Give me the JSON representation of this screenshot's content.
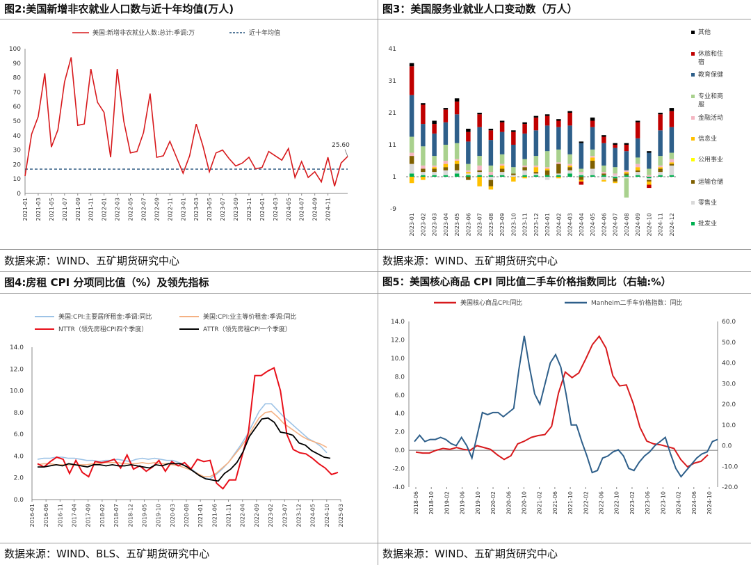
{
  "source_labels": {
    "p2": "数据来源：WIND、五矿期货研究中心",
    "p3": "数据来源：WIND、五矿期货研究中心",
    "p4": "数据来源：WIND、BLS、五矿期货研究中心",
    "p5": "数据来源：WIND、五矿期货研究中心"
  },
  "colors": {
    "red": "#d7191c",
    "blue": "#2e5f8a",
    "navy": "#1f4e79",
    "lightblue": "#9dc3e6",
    "orange": "#f4b183",
    "black": "#000000",
    "grid": "#bfbfbf"
  },
  "chart_data": [
    {
      "id": "p2",
      "type": "line",
      "title": "图2:美国新增非农就业人口数与近十年均值(万人)",
      "xlabel": "",
      "ylabel": "",
      "ylim": [
        0,
        100
      ],
      "yticks": [
        0,
        10,
        20,
        30,
        40,
        50,
        60,
        70,
        80,
        90,
        100
      ],
      "xticks": [
        "2021-01",
        "2021-03",
        "2021-05",
        "2021-07",
        "2021-09",
        "2021-11",
        "2022-01",
        "2022-03",
        "2022-05",
        "2022-07",
        "2022-09",
        "2022-11",
        "2023-01",
        "2023-03",
        "2023-05",
        "2023-07",
        "2023-09",
        "2023-11",
        "2024-01",
        "2024-03",
        "2024-05",
        "2024-07",
        "2024-09",
        "2024-11"
      ],
      "series": [
        {
          "name": "美国:新增非农就业人数:总计:季调:万",
          "color": "#d7191c",
          "values": [
            12,
            41,
            53,
            83,
            32,
            44,
            77,
            94,
            47,
            48,
            86,
            63,
            56,
            25,
            86,
            50,
            28,
            29,
            42,
            69,
            25,
            26,
            36,
            25,
            14,
            26,
            48,
            33,
            15,
            28,
            30,
            24,
            19,
            21,
            25,
            17,
            18,
            29,
            26,
            23,
            31,
            11,
            22,
            11,
            15,
            8,
            25,
            5,
            21,
            25.6
          ]
        },
        {
          "name": "近十年均值",
          "color": "#1f4e79",
          "style": "dashed",
          "values": [
            16.8
          ]
        }
      ],
      "annotations": [
        "25.60"
      ],
      "legend_position": "top"
    },
    {
      "id": "p3",
      "type": "bar",
      "title": "图3：美国服务业就业人口变动数（万人）",
      "stacked": true,
      "ylim": [
        -9,
        41
      ],
      "yticks": [
        -9,
        1,
        11,
        21,
        31,
        41
      ],
      "categories": [
        "2023-01",
        "2023-02",
        "2023-03",
        "2023-04",
        "2023-05",
        "2023-06",
        "2023-07",
        "2023-08",
        "2023-09",
        "2023-10",
        "2023-11",
        "2023-12",
        "2024-01",
        "2024-02",
        "2024-03",
        "2024-04",
        "2024-05",
        "2024-06",
        "2024-07",
        "2024-08",
        "2024-09",
        "2024-10",
        "2024-11",
        "2024-12"
      ],
      "series": [
        {
          "name": "批发业",
          "color": "#00b050",
          "values": [
            1,
            0.5,
            0.5,
            0.5,
            1,
            0.5,
            0.5,
            0.5,
            0.5,
            0,
            0.5,
            0.5,
            0.5,
            0.5,
            1,
            0.5,
            0.5,
            0.5,
            -0.5,
            0.5,
            0.5,
            -0.5,
            0.5,
            0.5
          ]
        },
        {
          "name": "零售业",
          "color": "#d9d9d9",
          "values": [
            3,
            1,
            1,
            1.5,
            1,
            0.5,
            1,
            -1,
            1,
            0.5,
            1.5,
            0.5,
            -1,
            0.5,
            1,
            0.5,
            2,
            -1,
            0.5,
            -0.5,
            1,
            -0.5,
            1,
            3
          ]
        },
        {
          "name": "运输仓储",
          "color": "#7f6000",
          "values": [
            2.5,
            1,
            1,
            1,
            2,
            -1,
            0.5,
            -2,
            1,
            0.5,
            1,
            0.5,
            1.5,
            3,
            1,
            -1,
            2.5,
            0.5,
            -1,
            0.5,
            0.5,
            -0.5,
            1,
            0.5
          ]
        },
        {
          "name": "公用事业",
          "color": "#ffff00",
          "values": [
            0,
            0,
            0,
            0,
            0,
            0,
            0,
            0,
            0,
            0,
            0,
            0,
            0,
            0,
            0,
            0,
            0,
            0,
            0,
            0,
            0,
            0,
            0,
            0
          ]
        },
        {
          "name": "信息业",
          "color": "#ffc000",
          "values": [
            -2,
            -1,
            0.5,
            1,
            1,
            0.5,
            -3,
            -1,
            1,
            -1.5,
            -0.5,
            1.5,
            0.5,
            -0.5,
            0.5,
            -0.5,
            1,
            -0.5,
            -0.5,
            0.5,
            1,
            -1,
            0.5,
            0.5
          ]
        },
        {
          "name": "金融活动",
          "color": "#f4b6c2",
          "values": [
            1,
            1,
            0.5,
            1,
            0.5,
            0.5,
            1.5,
            1,
            0.5,
            0,
            0.5,
            0.5,
            0.5,
            0.5,
            0.5,
            0.5,
            0.5,
            0.5,
            0.5,
            0.5,
            1,
            0.5,
            0.5,
            1
          ]
        },
        {
          "name": "专业和商服",
          "color": "#a9d18e",
          "values": [
            5,
            6,
            3,
            5,
            5,
            2,
            3,
            2,
            3,
            2,
            2,
            3,
            5,
            4,
            3,
            1,
            2,
            2,
            2,
            -6,
            2,
            2,
            3,
            2
          ]
        },
        {
          "name": "教育保健",
          "color": "#2e5f8a",
          "values": [
            13,
            7,
            7,
            7,
            9,
            7,
            9,
            8,
            7,
            7,
            8,
            8,
            8,
            7,
            9,
            8,
            7,
            7,
            6,
            6,
            6,
            5,
            8,
            8
          ]
        },
        {
          "name": "休旅和住宿",
          "color": "#c00000",
          "values": [
            9,
            6,
            3,
            4,
            4,
            3,
            4,
            3,
            3,
            4,
            3,
            4,
            3,
            2,
            4,
            -1,
            2,
            2,
            1,
            2,
            5,
            -1,
            5,
            5
          ]
        },
        {
          "name": "其他",
          "color": "#000000",
          "values": [
            1,
            0.5,
            1,
            0.5,
            1,
            1,
            0.5,
            0.5,
            0.5,
            0.5,
            0.5,
            0.5,
            0.5,
            0.5,
            0.5,
            0.5,
            1,
            0.5,
            0.5,
            0.5,
            0.5,
            0.5,
            0.5,
            1
          ]
        }
      ],
      "legend_position": "right"
    },
    {
      "id": "p4",
      "type": "line",
      "title": "图4:房租 CPI 分项同比值（%）及领先指标",
      "ylim": [
        0,
        14
      ],
      "yticks": [
        0.0,
        2.0,
        4.0,
        6.0,
        8.0,
        10.0,
        12.0,
        14.0
      ],
      "xticks": [
        "2016-01",
        "2016-06",
        "2016-11",
        "2017-04",
        "2017-09",
        "2018-02",
        "2018-07",
        "2018-12",
        "2019-05",
        "2019-10",
        "2020-03",
        "2020-08",
        "2021-01",
        "2021-06",
        "2021-11",
        "2022-04",
        "2022-09",
        "2023-02",
        "2023-07",
        "2023-12",
        "2024-05",
        "2024-10",
        "2025-03"
      ],
      "series": [
        {
          "name": "美国:CPI:主要居所租金:季调:同比",
          "color": "#9dc3e6",
          "values": [
            3.7,
            3.8,
            3.8,
            3.9,
            3.9,
            3.8,
            3.8,
            3.7,
            3.6,
            3.6,
            3.5,
            3.6,
            3.6,
            3.7,
            3.6,
            3.5,
            3.7,
            3.8,
            3.7,
            3.8,
            3.7,
            3.6,
            3.6,
            3.4,
            3.1,
            2.8,
            2.4,
            2.0,
            1.9,
            2.3,
            2.8,
            3.4,
            4.2,
            5.0,
            5.9,
            7.0,
            8.1,
            8.8,
            8.8,
            8.2,
            7.6,
            7.1,
            6.6,
            6.1,
            5.6,
            5.3,
            4.9,
            4.3
          ]
        },
        {
          "name": "美国:CPI:业主等价租金:季调:同比",
          "color": "#f4b183",
          "values": [
            3.2,
            3.3,
            3.3,
            3.2,
            3.2,
            3.2,
            3.2,
            3.2,
            3.2,
            3.3,
            3.3,
            3.4,
            3.4,
            3.4,
            3.3,
            3.3,
            3.3,
            3.4,
            3.3,
            3.4,
            3.3,
            3.3,
            3.2,
            3.1,
            2.9,
            2.7,
            2.4,
            2.1,
            2.1,
            2.4,
            2.9,
            3.4,
            4.1,
            4.8,
            5.6,
            6.6,
            7.5,
            8.0,
            8.1,
            7.6,
            7.0,
            6.6,
            6.2,
            5.8,
            5.5,
            5.3,
            5.1,
            4.8
          ]
        },
        {
          "name": "NTTR（领先房租CPI四个季度）",
          "color": "#e8101a",
          "values": [
            3.3,
            3.0,
            3.5,
            3.9,
            3.7,
            2.4,
            3.6,
            2.5,
            2.1,
            3.5,
            3.4,
            3.5,
            3.7,
            2.9,
            4.1,
            2.8,
            3.1,
            2.6,
            3.0,
            3.6,
            2.6,
            3.5,
            3.1,
            3.4,
            2.8,
            3.7,
            3.5,
            3.6,
            1.5,
            1.0,
            1.8,
            1.8,
            4.0,
            6.2,
            11.4,
            11.4,
            11.8,
            12.1,
            10.0,
            6.0,
            4.6,
            4.3,
            4.2,
            3.8,
            3.3,
            2.9,
            2.3,
            2.5
          ]
        },
        {
          "name": "ATTR（领先房租CPI一个季度）",
          "color": "#000000",
          "values": [
            3.0,
            3.0,
            3.1,
            3.2,
            3.1,
            3.3,
            3.2,
            3.1,
            3.0,
            3.2,
            3.2,
            3.1,
            3.2,
            3.1,
            3.1,
            3.2,
            3.1,
            3.0,
            2.9,
            3.2,
            3.1,
            3.3,
            3.3,
            3.3,
            3.0,
            2.6,
            2.2,
            1.9,
            1.8,
            1.7,
            2.4,
            2.8,
            3.4,
            4.4,
            5.8,
            6.6,
            7.4,
            7.5,
            7.1,
            6.2,
            6.1,
            5.9,
            5.2,
            5.0,
            4.5,
            4.2,
            3.9,
            3.8
          ]
        }
      ],
      "legend_position": "top"
    },
    {
      "id": "p5",
      "type": "line",
      "title": "图5：美国核心商品 CPI 同比值二手车价格指数同比（右轴:%）",
      "ylim": [
        -4,
        14
      ],
      "yticks": [
        -4.0,
        -2.0,
        0.0,
        2.0,
        4.0,
        6.0,
        8.0,
        10.0,
        12.0,
        14.0
      ],
      "y2lim": [
        -20,
        60
      ],
      "y2ticks": [
        -20.0,
        -10.0,
        0.0,
        10.0,
        20.0,
        30.0,
        40.0,
        50.0,
        60.0
      ],
      "xticks": [
        "2018-06",
        "2018-10",
        "2019-02",
        "2019-06",
        "2019-10",
        "2020-02",
        "2020-06",
        "2020-10",
        "2021-02",
        "2021-06",
        "2021-10",
        "2022-02",
        "2022-06",
        "2022-10",
        "2023-02",
        "2023-06",
        "2023-10",
        "2024-02",
        "2024-06",
        "2024-10"
      ],
      "series": [
        {
          "name": "美国核心商品CPI:同比",
          "color": "#d7191c",
          "axis": "left",
          "values": [
            -0.2,
            -0.3,
            -0.3,
            0.0,
            0.2,
            0.1,
            0.3,
            0.1,
            0.0,
            0.5,
            0.3,
            0.1,
            -0.5,
            -1.0,
            -0.6,
            0.7,
            1.0,
            1.4,
            1.6,
            1.7,
            2.6,
            6.2,
            8.5,
            7.9,
            8.4,
            9.9,
            11.5,
            12.4,
            11.1,
            8.1,
            7.0,
            7.1,
            5.1,
            2.5,
            1.0,
            0.7,
            0.6,
            0.4,
            0.2,
            -1.0,
            -1.8,
            -1.4,
            -1.2,
            -0.5
          ]
        },
        {
          "name": "Manheim二手车价格指数：同比",
          "color": "#2e5f8a",
          "axis": "right",
          "values": [
            2,
            5,
            2,
            3,
            3,
            4,
            3,
            1,
            0,
            4,
            0,
            -6,
            5,
            16,
            15,
            16,
            16,
            14,
            16,
            18,
            37,
            53,
            38,
            25,
            20,
            30,
            40,
            44,
            38,
            25,
            10,
            10,
            2,
            -5,
            -13,
            -12,
            -6,
            -5,
            -3,
            -2,
            -5,
            -11,
            -12,
            -8,
            -5,
            -3,
            0,
            2,
            4,
            -4,
            -11,
            -15,
            -12,
            -9,
            -6,
            -4,
            -3,
            2,
            3
          ]
        }
      ],
      "legend_position": "top"
    }
  ]
}
